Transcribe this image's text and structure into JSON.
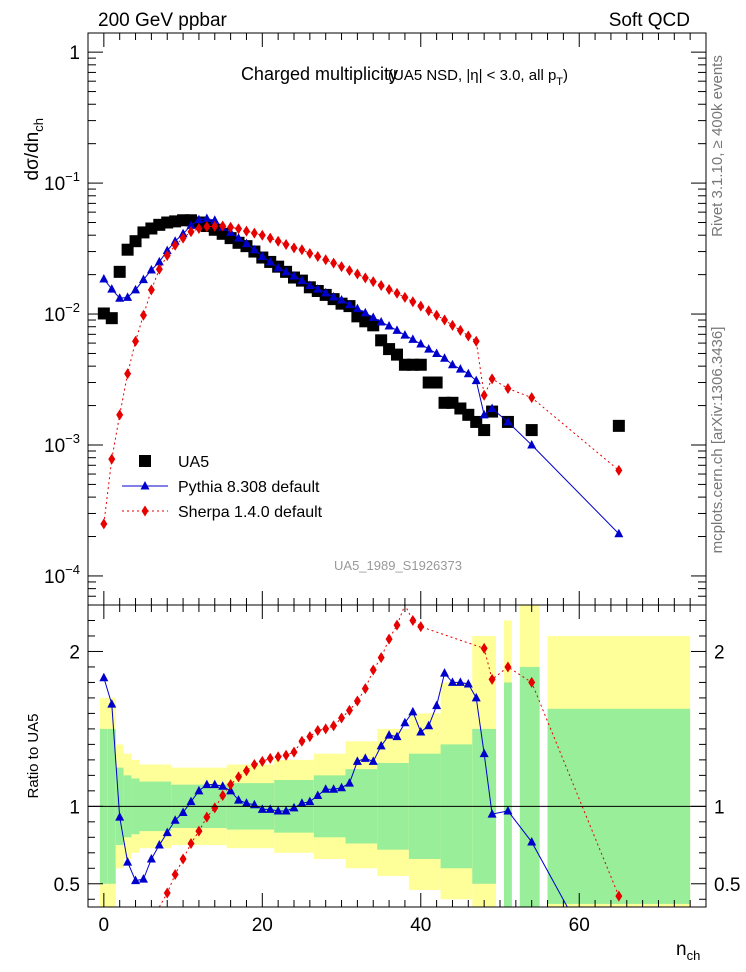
{
  "header": {
    "left": "200 GeV ppbar",
    "right": "Soft QCD"
  },
  "side_labels": {
    "rivet": "Rivet 3.1.10, ≥ 400k events",
    "mcplots": "mcplots.cern.ch [arXiv:1306.3436]"
  },
  "watermark": "UA5_1989_S1926373",
  "colors": {
    "ua5": "#000000",
    "pythia": "#0000cc",
    "sherpa": "#e60000",
    "band_inner": "#99ee99",
    "band_outer": "#ffff99"
  },
  "chart_data": [
    {
      "type": "scatter",
      "title": "Charged multiplicity",
      "subtitle": "(UA5 NSD, |η| < 3.0, all p",
      "subtitle_sub": "T",
      "ylabel": "dσ/dn",
      "ylabel_sub": "ch",
      "yscale": "log",
      "xlim": [
        -2,
        76
      ],
      "ylim": [
        6e-05,
        1.4
      ],
      "yticks": [
        {
          "v": 1,
          "base": "1",
          "exp": ""
        },
        {
          "v": 0.1,
          "base": "10",
          "exp": "−1"
        },
        {
          "v": 0.01,
          "base": "10",
          "exp": "−2"
        },
        {
          "v": 0.001,
          "base": "10",
          "exp": "−3"
        },
        {
          "v": 0.0001,
          "base": "10",
          "exp": "−4"
        }
      ],
      "legend": [
        "UA5",
        "Pythia 8.308 default",
        "Sherpa 1.4.0 default"
      ],
      "legend_position": "lower-left",
      "series": [
        {
          "name": "UA5",
          "marker": "square",
          "x": [
            0,
            1,
            2,
            3,
            4,
            5,
            6,
            7,
            8,
            9,
            10,
            11,
            12,
            13,
            14,
            15,
            16,
            17,
            18,
            19,
            20,
            21,
            22,
            23,
            24,
            25,
            26,
            27,
            28,
            29,
            30,
            31,
            32,
            33,
            34,
            35,
            36,
            37,
            38,
            39,
            40,
            41,
            42,
            43,
            44,
            45,
            46,
            47,
            48,
            49,
            51,
            54,
            65
          ],
          "y": [
            0.0101,
            0.0093,
            0.021,
            0.031,
            0.036,
            0.042,
            0.045,
            0.048,
            0.05,
            0.051,
            0.052,
            0.052,
            0.05,
            0.047,
            0.044,
            0.041,
            0.038,
            0.035,
            0.033,
            0.03,
            0.027,
            0.025,
            0.023,
            0.021,
            0.019,
            0.018,
            0.016,
            0.015,
            0.014,
            0.013,
            0.012,
            0.0115,
            0.0096,
            0.0088,
            0.0082,
            0.0063,
            0.0054,
            0.0049,
            0.0041,
            0.0041,
            0.0041,
            0.003,
            0.003,
            0.0021,
            0.0021,
            0.0019,
            0.0017,
            0.0015,
            0.0013,
            0.0018,
            0.0015,
            0.0013,
            0.0014
          ]
        },
        {
          "name": "Pythia 8.308 default",
          "marker": "triangle",
          "x": [
            0,
            1,
            2,
            3,
            4,
            5,
            6,
            7,
            8,
            9,
            10,
            11,
            12,
            13,
            14,
            15,
            16,
            17,
            18,
            19,
            20,
            21,
            22,
            23,
            24,
            25,
            26,
            27,
            28,
            29,
            30,
            31,
            32,
            33,
            34,
            35,
            36,
            37,
            38,
            39,
            40,
            41,
            42,
            43,
            44,
            45,
            46,
            47,
            48,
            49,
            51,
            54,
            65
          ],
          "y": [
            0.0185,
            0.0155,
            0.0132,
            0.0134,
            0.0153,
            0.0183,
            0.0217,
            0.025,
            0.0305,
            0.036,
            0.041,
            0.0475,
            0.0525,
            0.0537,
            0.052,
            0.046,
            0.042,
            0.038,
            0.0345,
            0.031,
            0.0275,
            0.025,
            0.0225,
            0.021,
            0.0195,
            0.018,
            0.0165,
            0.0155,
            0.0145,
            0.0135,
            0.0128,
            0.0118,
            0.011,
            0.0102,
            0.0094,
            0.0087,
            0.0081,
            0.0075,
            0.0069,
            0.0064,
            0.0059,
            0.0054,
            0.005,
            0.0046,
            0.0041,
            0.0038,
            0.0035,
            0.0031,
            0.0017,
            0.0019,
            0.0015,
            0.001,
            0.00021
          ]
        },
        {
          "name": "Sherpa 1.4.0 default",
          "marker": "diamond",
          "x": [
            0,
            1,
            2,
            3,
            4,
            5,
            6,
            7,
            8,
            9,
            10,
            11,
            12,
            13,
            14,
            15,
            16,
            17,
            18,
            19,
            20,
            21,
            22,
            23,
            24,
            25,
            26,
            27,
            28,
            29,
            30,
            31,
            32,
            33,
            34,
            35,
            36,
            37,
            38,
            39,
            40,
            41,
            42,
            43,
            44,
            45,
            46,
            47,
            48,
            49,
            51,
            54,
            65
          ],
          "y": [
            0.00025,
            0.00078,
            0.0017,
            0.0035,
            0.0062,
            0.0098,
            0.0153,
            0.022,
            0.028,
            0.0335,
            0.038,
            0.0425,
            0.045,
            0.0465,
            0.0468,
            0.047,
            0.046,
            0.0448,
            0.043,
            0.0415,
            0.04,
            0.038,
            0.036,
            0.034,
            0.032,
            0.031,
            0.029,
            0.0275,
            0.026,
            0.0245,
            0.023,
            0.0215,
            0.0202,
            0.0189,
            0.0177,
            0.0165,
            0.0154,
            0.0144,
            0.0134,
            0.0124,
            0.0115,
            0.0106,
            0.0098,
            0.009,
            0.0082,
            0.0075,
            0.0068,
            0.0062,
            0.0024,
            0.0032,
            0.0027,
            0.0023,
            0.00064
          ]
        }
      ]
    },
    {
      "type": "scatter",
      "ylabel": "Ratio to UA5",
      "xlabel": "n",
      "xlabel_sub": "ch",
      "xlim": [
        -2,
        76
      ],
      "ylim": [
        0.35,
        2.3
      ],
      "xticks": [
        0,
        20,
        40,
        60
      ],
      "xtick_labels": [
        "0",
        "20",
        "40",
        "60"
      ],
      "yticks": [
        0.5,
        1,
        2
      ],
      "ytick_labels": [
        "0.5",
        "1",
        "2"
      ],
      "reference_line": 1,
      "uncertainty_bands": [
        {
          "x0": -0.5,
          "x1": 0.5,
          "inner": [
            0.5,
            1.5
          ],
          "outer": [
            0.3,
            1.7
          ]
        },
        {
          "x0": 0.5,
          "x1": 1.5,
          "inner": [
            0.5,
            1.5
          ],
          "outer": [
            0.3,
            1.7
          ]
        },
        {
          "x0": 1.5,
          "x1": 2.5,
          "inner": [
            0.75,
            1.25
          ],
          "outer": [
            0.6,
            1.4
          ]
        },
        {
          "x0": 2.5,
          "x1": 3.5,
          "inner": [
            0.8,
            1.2
          ],
          "outer": [
            0.66,
            1.34
          ]
        },
        {
          "x0": 3.5,
          "x1": 4.5,
          "inner": [
            0.82,
            1.18
          ],
          "outer": [
            0.7,
            1.3
          ]
        },
        {
          "x0": 4.5,
          "x1": 8.5,
          "inner": [
            0.84,
            1.16
          ],
          "outer": [
            0.73,
            1.27
          ]
        },
        {
          "x0": 8.5,
          "x1": 15.5,
          "inner": [
            0.86,
            1.14
          ],
          "outer": [
            0.75,
            1.25
          ]
        },
        {
          "x0": 15.5,
          "x1": 21.5,
          "inner": [
            0.85,
            1.15
          ],
          "outer": [
            0.73,
            1.27
          ]
        },
        {
          "x0": 21.5,
          "x1": 26.5,
          "inner": [
            0.83,
            1.17
          ],
          "outer": [
            0.7,
            1.3
          ]
        },
        {
          "x0": 26.5,
          "x1": 30.5,
          "inner": [
            0.8,
            1.2
          ],
          "outer": [
            0.66,
            1.34
          ]
        },
        {
          "x0": 30.5,
          "x1": 34.5,
          "inner": [
            0.76,
            1.24
          ],
          "outer": [
            0.6,
            1.42
          ]
        },
        {
          "x0": 34.5,
          "x1": 38.5,
          "inner": [
            0.72,
            1.28
          ],
          "outer": [
            0.55,
            1.5
          ]
        },
        {
          "x0": 38.5,
          "x1": 42.5,
          "inner": [
            0.66,
            1.34
          ],
          "outer": [
            0.46,
            1.6
          ]
        },
        {
          "x0": 42.5,
          "x1": 46.5,
          "inner": [
            0.6,
            1.4
          ],
          "outer": [
            0.4,
            1.8
          ]
        },
        {
          "x0": 46.5,
          "x1": 49.5,
          "inner": [
            0.5,
            1.5
          ],
          "outer": [
            0.35,
            2.1
          ]
        },
        {
          "x0": 50.5,
          "x1": 51.5,
          "inner": [
            0.35,
            1.8
          ],
          "outer": [
            0.35,
            2.2
          ]
        },
        {
          "x0": 52.5,
          "x1": 55.0,
          "inner": [
            0.35,
            1.9
          ],
          "outer": [
            0.35,
            2.3
          ]
        },
        {
          "x0": 56.0,
          "x1": 74.0,
          "inner": [
            0.37,
            1.63
          ],
          "outer": [
            0.35,
            2.1
          ]
        }
      ],
      "series": [
        {
          "name": "Pythia 8.308 default",
          "x": [
            0,
            1,
            2,
            3,
            4,
            5,
            6,
            7,
            8,
            9,
            10,
            11,
            12,
            13,
            14,
            15,
            16,
            17,
            18,
            19,
            20,
            21,
            22,
            23,
            24,
            25,
            26,
            27,
            28,
            29,
            30,
            31,
            32,
            33,
            34,
            35,
            36,
            37,
            38,
            39,
            40,
            41,
            42,
            43,
            44,
            45,
            46,
            47,
            48,
            49,
            51,
            54,
            58.5
          ],
          "y": [
            1.83,
            1.66,
            0.93,
            0.64,
            0.52,
            0.53,
            0.66,
            0.75,
            0.83,
            0.91,
            0.96,
            1.03,
            1.1,
            1.14,
            1.14,
            1.13,
            1.1,
            1.04,
            1.02,
            1.01,
            0.98,
            0.98,
            0.97,
            0.97,
            0.99,
            1.02,
            1.03,
            1.07,
            1.11,
            1.11,
            1.12,
            1.15,
            1.29,
            1.31,
            1.29,
            1.39,
            1.46,
            1.45,
            1.54,
            1.61,
            1.48,
            1.52,
            1.65,
            1.86,
            1.8,
            1.8,
            1.79,
            1.7,
            1.34,
            0.95,
            0.97,
            0.77,
            0.35
          ]
        },
        {
          "name": "Sherpa 1.4.0 default",
          "x": [
            7,
            8,
            9,
            10,
            11,
            12,
            13,
            14,
            15,
            16,
            17,
            18,
            19,
            20,
            21,
            22,
            23,
            24,
            25,
            26,
            27,
            28,
            29,
            30,
            31,
            32,
            33,
            34,
            35,
            36,
            37,
            38,
            39,
            40,
            48,
            49,
            51,
            54,
            65
          ],
          "y": [
            0.35,
            0.44,
            0.56,
            0.66,
            0.76,
            0.84,
            0.93,
            0.99,
            1.07,
            1.14,
            1.19,
            1.23,
            1.27,
            1.29,
            1.31,
            1.32,
            1.33,
            1.35,
            1.42,
            1.45,
            1.49,
            1.5,
            1.52,
            1.57,
            1.62,
            1.68,
            1.76,
            1.88,
            1.96,
            2.08,
            2.17,
            2.3,
            2.2,
            2.16,
            2.02,
            1.82,
            1.9,
            1.8,
            0.42
          ]
        }
      ]
    }
  ]
}
